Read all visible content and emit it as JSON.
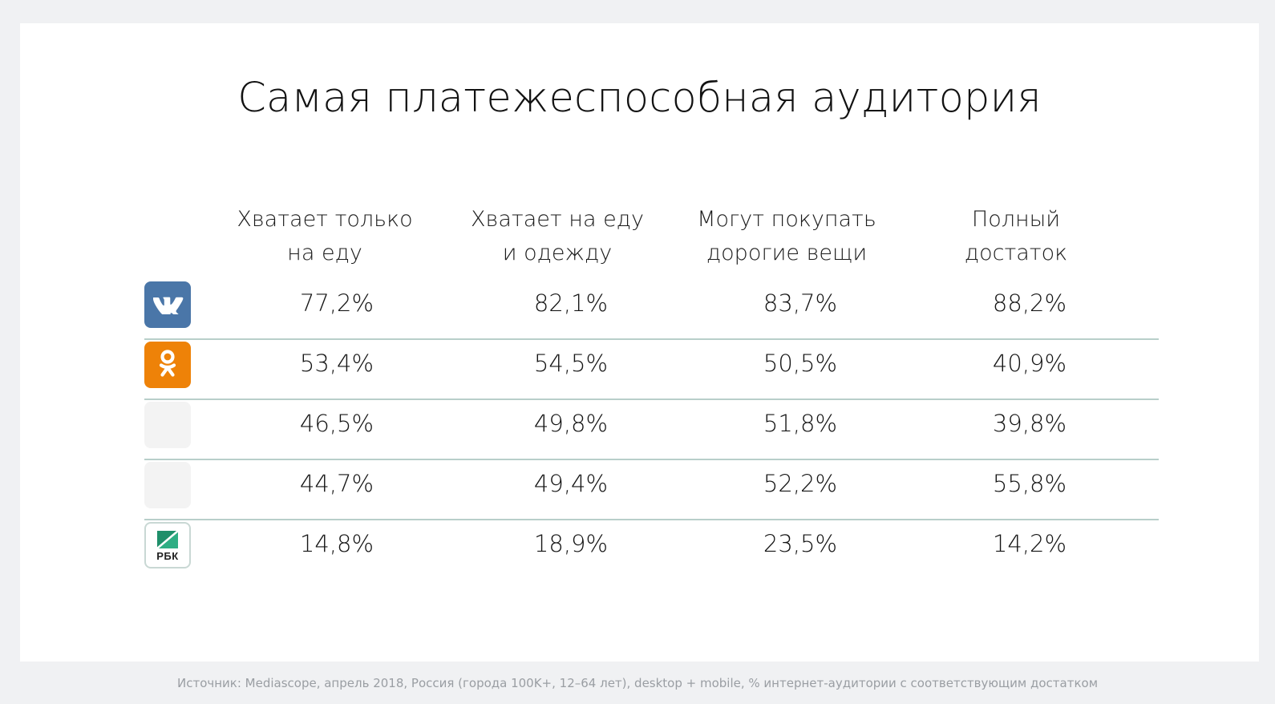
{
  "title": "Самая платежеспособная аудитория",
  "columns": [
    {
      "line1": "Хватает только",
      "line2": "на еду"
    },
    {
      "line1": "Хватает на еду",
      "line2": "и одежду"
    },
    {
      "line1": "Могут покупать",
      "line2": "дорогие вещи"
    },
    {
      "line1": "Полный",
      "line2": "достаток"
    }
  ],
  "rows": [
    {
      "logo": "vk-logo-icon",
      "values": [
        "77,2%",
        "82,1%",
        "83,7%",
        "88,2%"
      ]
    },
    {
      "logo": "odnoklassniki-logo-icon",
      "values": [
        "53,4%",
        "54,5%",
        "50,5%",
        "40,9%"
      ]
    },
    {
      "logo": "blank-logo-icon",
      "values": [
        "46,5%",
        "49,8%",
        "51,8%",
        "39,8%"
      ]
    },
    {
      "logo": "blank-logo-icon",
      "values": [
        "44,7%",
        "49,4%",
        "52,2%",
        "55,8%"
      ]
    },
    {
      "logo": "rbk-logo-icon",
      "logo_text": "РБК",
      "values": [
        "14,8%",
        "18,9%",
        "23,5%",
        "14,2%"
      ]
    }
  ],
  "source": "Источник: Mediascope, апрель 2018, Россия (города 100K+, 12–64 лет), desktop + mobile, % интернет-аудитории с соответствующим достатком",
  "colors": {
    "vk": "#4a76a8",
    "ok": "#ee8208",
    "divider": "#b8cfca",
    "rbk_green": "#1f8f6a"
  }
}
